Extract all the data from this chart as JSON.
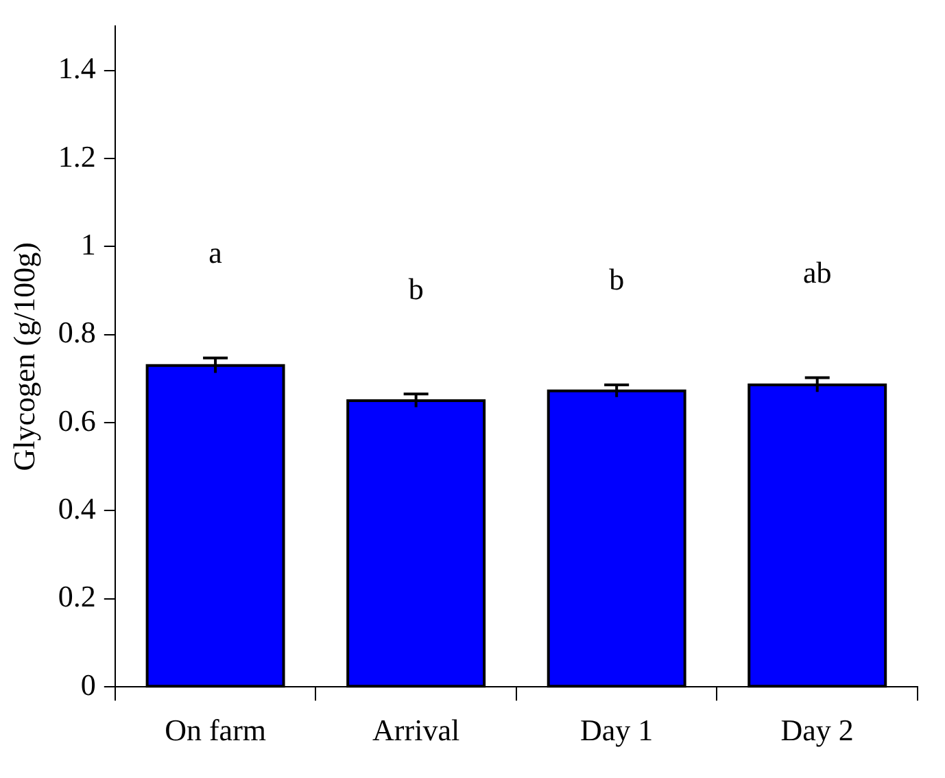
{
  "chart_data": {
    "type": "bar",
    "ylabel": "Glycogen (g/100g)",
    "categories": [
      "On farm",
      "Arrival",
      "Day 1",
      "Day 2"
    ],
    "series": [
      {
        "color": "#0000ff",
        "values": [
          0.73,
          0.65,
          0.672,
          0.686
        ],
        "errors": [
          0.017,
          0.015,
          0.014,
          0.016
        ]
      }
    ],
    "ylim": [
      0,
      1.5
    ],
    "yticks": [
      0,
      0.2,
      0.4,
      0.6,
      0.8,
      1,
      1.2,
      1.4
    ],
    "grid": false,
    "legend": false,
    "annotations": [
      "a",
      "b",
      "b",
      "ab"
    ]
  }
}
